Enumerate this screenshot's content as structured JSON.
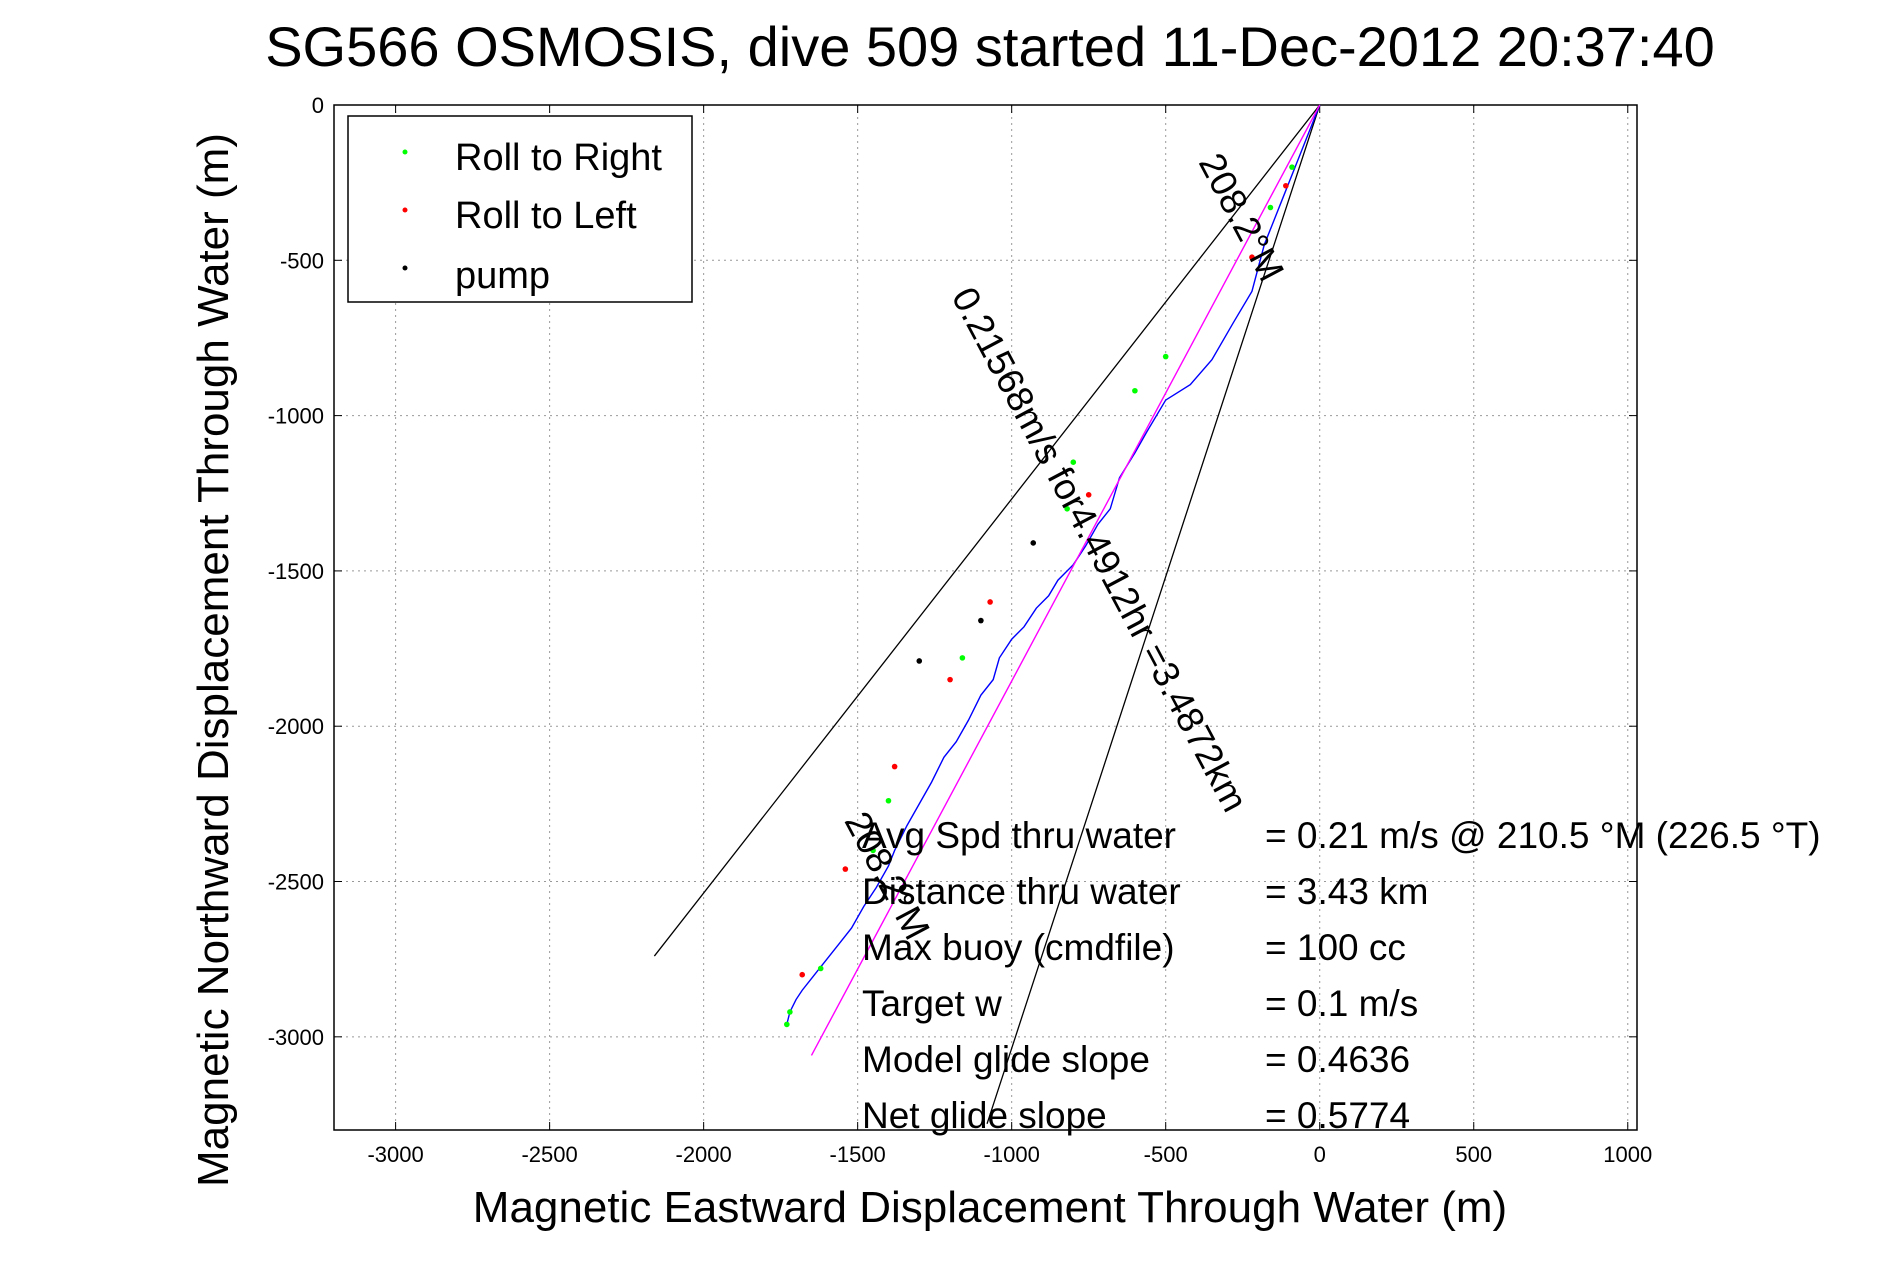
{
  "chart_data": {
    "type": "line",
    "title": "SG566 OSMOSIS, dive 509 started 11-Dec-2012 20:37:40",
    "xlabel": "Magnetic Eastward Displacement Through Water (m)",
    "ylabel": "Magnetic Northward Displacement Through Water (m)",
    "xlim": [
      -3200,
      1030
    ],
    "ylim": [
      -3300,
      0
    ],
    "xticks": [
      -3000,
      -2500,
      -2000,
      -1500,
      -1000,
      -500,
      0,
      500,
      1000
    ],
    "yticks": [
      0,
      -500,
      -1000,
      -1500,
      -2000,
      -2500,
      -3000
    ],
    "xtick_labels": [
      "-3000",
      "-2500",
      "-2000",
      "-1500",
      "-1000",
      "-500",
      "0",
      "500",
      "1000"
    ],
    "ytick_labels": [
      "0",
      "-500",
      "-1000",
      "-1500",
      "-2000",
      "-2500",
      "-3000"
    ],
    "grid": true,
    "legend_position": "top-left",
    "legend": [
      {
        "label": "Roll to Right",
        "color": "#00ff00"
      },
      {
        "label": "Roll to Left",
        "color": "#ff0000"
      },
      {
        "label": "pump",
        "color": "#000000"
      }
    ],
    "series": [
      {
        "color": "#0000ff",
        "x": [
          0,
          -60,
          -120,
          -180,
          -220,
          -280,
          -350,
          -420,
          -500,
          -560,
          -600,
          -650,
          -680,
          -720,
          -760,
          -800,
          -850,
          -880,
          -920,
          -960,
          -1000,
          -1040,
          -1060,
          -1100,
          -1140,
          -1180,
          -1220,
          -1260,
          -1300,
          -1340,
          -1380,
          -1400,
          -1440,
          -1480,
          -1520,
          -1560,
          -1600,
          -1640,
          -1680,
          -1700,
          -1720,
          -1730
        ],
        "y": [
          0,
          -150,
          -300,
          -450,
          -600,
          -700,
          -820,
          -900,
          -950,
          -1050,
          -1120,
          -1200,
          -1300,
          -1350,
          -1420,
          -1480,
          -1530,
          -1580,
          -1620,
          -1680,
          -1720,
          -1780,
          -1850,
          -1900,
          -1980,
          -2050,
          -2100,
          -2180,
          -2250,
          -2320,
          -2400,
          -2450,
          -2520,
          -2580,
          -2650,
          -2700,
          -2750,
          -2800,
          -2850,
          -2880,
          -2920,
          -2960
        ]
      },
      {
        "color": "#ff00ff",
        "x": [
          0,
          -1650
        ],
        "y": [
          0,
          -3060
        ]
      }
    ],
    "right_roll_points": {
      "x": [
        -90,
        -160,
        -500,
        -600,
        -800,
        -820,
        -1160,
        -1400,
        -1450,
        -1620,
        -1720,
        -1730
      ],
      "y": [
        -200,
        -330,
        -810,
        -920,
        -1150,
        -1300,
        -1780,
        -2240,
        -2400,
        -2780,
        -2920,
        -2960
      ]
    },
    "left_roll_points": {
      "x": [
        -110,
        -220,
        -750,
        -1070,
        -1200,
        -1380,
        -1540,
        -1680
      ],
      "y": [
        -260,
        -490,
        -1255,
        -1600,
        -1850,
        -2130,
        -2460,
        -2800
      ]
    },
    "pump_points": {
      "x": [
        -930,
        -1100,
        -1300
      ],
      "y": [
        -1410,
        -1660,
        -1790
      ]
    },
    "reference_lines": [
      {
        "x": [
          0,
          -2160
        ],
        "y": [
          0,
          -2740
        ],
        "color": "#000000"
      },
      {
        "x": [
          0,
          -1080
        ],
        "y": [
          0,
          -3280
        ],
        "color": "#000000"
      }
    ],
    "annotations": {
      "rotated": [
        {
          "text": "208.2°M",
          "x": -290,
          "y": -380,
          "rotation": 62
        },
        {
          "text": "0.21568m/s for4.4912hr =3.4872km",
          "x": -750,
          "y": -1450,
          "rotation": 62
        },
        {
          "text": "208.2°M",
          "x": -1440,
          "y": -2500,
          "rotation": 62
        }
      ],
      "stats": [
        {
          "label": "Avg Spd thru water",
          "value": "=  0.21 m/s @ 210.5 °M (226.5 °T)"
        },
        {
          "label": "Distance thru water",
          "value": "=  3.43 km"
        },
        {
          "label": "Max buoy (cmdfile)",
          "value": "= 100 cc"
        },
        {
          "label": "Target w",
          "value": "= 0.1 m/s"
        },
        {
          "label": "Model glide slope",
          "value": "= 0.4636"
        },
        {
          "label": "Net glide slope",
          "value": "= 0.5774"
        }
      ]
    }
  }
}
